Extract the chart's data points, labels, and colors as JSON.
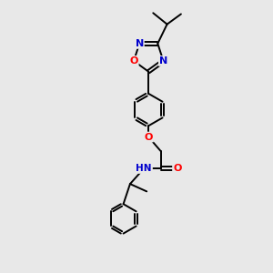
{
  "bg_color": "#e8e8e8",
  "bond_color": "#000000",
  "n_color": "#0000cd",
  "o_color": "#ff0000",
  "text_color": "#000000",
  "figsize": [
    3.0,
    3.0
  ],
  "dpi": 100,
  "xlim": [
    0,
    10
  ],
  "ylim": [
    0,
    10
  ],
  "lw": 1.4,
  "fs": 8.0
}
